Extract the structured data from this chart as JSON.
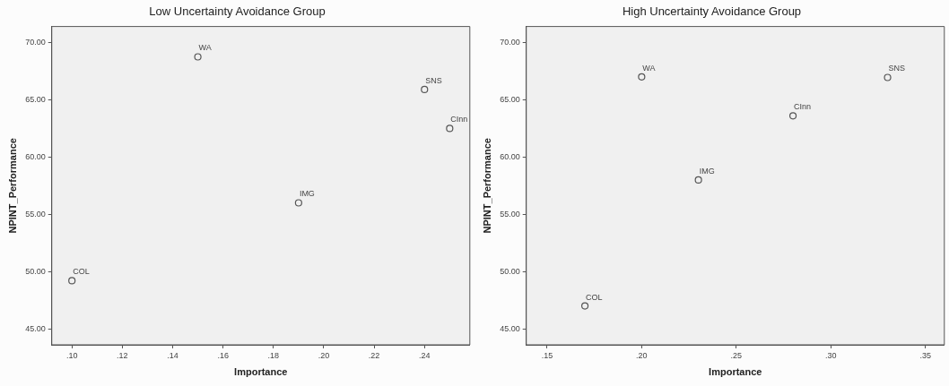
{
  "chart_data": [
    {
      "type": "scatter",
      "title": "Low Uncertainty Avoidance Group",
      "xlabel": "Importance",
      "ylabel": "NPINT_Performance",
      "marker": "circle",
      "grid": false,
      "legend": false,
      "series": [
        {
          "color": "#555555",
          "x": [
            0.1,
            0.15,
            0.24,
            0.25,
            0.19
          ],
          "values": [
            49.2,
            68.75,
            65.9,
            62.5,
            56.0
          ]
        }
      ],
      "xlim": [
        0.092,
        0.258
      ],
      "ylim": [
        43.6,
        71.4
      ],
      "xticks": [
        {
          "value": 0.1,
          "label": ".10"
        },
        {
          "value": 0.12,
          "label": ".12"
        },
        {
          "value": 0.14,
          "label": ".14"
        },
        {
          "value": 0.16,
          "label": ".16"
        },
        {
          "value": 0.18,
          "label": ".18"
        },
        {
          "value": 0.2,
          "label": ".20"
        },
        {
          "value": 0.22,
          "label": ".22"
        },
        {
          "value": 0.24,
          "label": ".24"
        }
      ],
      "yticks": [
        {
          "value": 45,
          "label": "45.00"
        },
        {
          "value": 50,
          "label": "50.00"
        },
        {
          "value": 55,
          "label": "55.00"
        },
        {
          "value": 60,
          "label": "60.00"
        },
        {
          "value": 65,
          "label": "65.00"
        },
        {
          "value": 70,
          "label": "70.00"
        }
      ],
      "annotations": [
        {
          "text": "COL",
          "x": 0.1,
          "y": 49.2
        },
        {
          "text": "WA",
          "x": 0.15,
          "y": 68.75
        },
        {
          "text": "SNS",
          "x": 0.24,
          "y": 65.9
        },
        {
          "text": "CInn",
          "x": 0.25,
          "y": 62.5
        },
        {
          "text": "IMG",
          "x": 0.19,
          "y": 56.0
        }
      ]
    },
    {
      "type": "scatter",
      "title": "High Uncertainty Avoidance Group",
      "xlabel": "Importance",
      "ylabel": "NPINT_Performance",
      "marker": "circle",
      "grid": false,
      "legend": false,
      "series": [
        {
          "color": "#555555",
          "x": [
            0.17,
            0.2,
            0.23,
            0.28,
            0.33
          ],
          "values": [
            47.0,
            67.0,
            58.0,
            63.6,
            66.95
          ]
        }
      ],
      "xlim": [
        0.139,
        0.36
      ],
      "ylim": [
        43.6,
        71.4
      ],
      "xticks": [
        {
          "value": 0.15,
          "label": ".15"
        },
        {
          "value": 0.2,
          "label": ".20"
        },
        {
          "value": 0.25,
          "label": ".25"
        },
        {
          "value": 0.3,
          "label": ".30"
        },
        {
          "value": 0.35,
          "label": ".35"
        }
      ],
      "yticks": [
        {
          "value": 45,
          "label": "45.00"
        },
        {
          "value": 50,
          "label": "50.00"
        },
        {
          "value": 55,
          "label": "55.00"
        },
        {
          "value": 60,
          "label": "60.00"
        },
        {
          "value": 65,
          "label": "65.00"
        },
        {
          "value": 70,
          "label": "70.00"
        }
      ],
      "annotations": [
        {
          "text": "COL",
          "x": 0.17,
          "y": 47.0
        },
        {
          "text": "WA",
          "x": 0.2,
          "y": 67.0
        },
        {
          "text": "IMG",
          "x": 0.23,
          "y": 58.0
        },
        {
          "text": "CInn",
          "x": 0.28,
          "y": 63.6
        },
        {
          "text": "SNS",
          "x": 0.33,
          "y": 66.95
        }
      ]
    }
  ]
}
